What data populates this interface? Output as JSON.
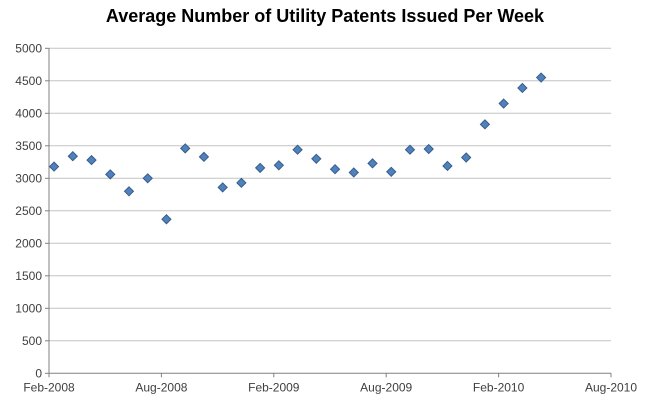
{
  "chart_data": {
    "type": "scatter",
    "title": "Average Number of Utility Patents Issued Per Week",
    "marker": "diamond",
    "legend": "none",
    "grid": true,
    "categories": [
      "Feb-2008",
      "Mar-2008",
      "Apr-2008",
      "May-2008",
      "Jun-2008",
      "Jul-2008",
      "Aug-2008",
      "Sep-2008",
      "Oct-2008",
      "Nov-2008",
      "Dec-2008",
      "Jan-2009",
      "Feb-2009",
      "Mar-2009",
      "Apr-2009",
      "May-2009",
      "Jun-2009",
      "Jul-2009",
      "Aug-2009",
      "Sep-2009",
      "Oct-2009",
      "Nov-2009",
      "Dec-2009",
      "Jan-2010",
      "Feb-2010",
      "Mar-2010",
      "Apr-2010"
    ],
    "values": [
      3180,
      3340,
      3280,
      3060,
      2800,
      3000,
      2370,
      3460,
      3330,
      2860,
      2930,
      3160,
      3200,
      3440,
      3300,
      3140,
      3090,
      3230,
      3100,
      3440,
      3450,
      3190,
      3320,
      3830,
      4150,
      4390,
      4550
    ],
    "x_axis": {
      "tick_labels": [
        "Feb-2008",
        "Aug-2008",
        "Feb-2009",
        "Aug-2009",
        "Feb-2010",
        "Aug-2010"
      ],
      "start": "Feb-2008",
      "end": "Aug-2010",
      "months_total": 30,
      "months_per_tick": 6
    },
    "y_axis": {
      "min": 0,
      "max": 5000,
      "step": 500,
      "tick_labels": [
        "0",
        "500",
        "1000",
        "1500",
        "2000",
        "2500",
        "3000",
        "3500",
        "4000",
        "4500",
        "5000"
      ]
    },
    "colors": {
      "background": "#FFFFFF",
      "title": "#000000",
      "marker_fill": "#4F81BD",
      "marker_border": "#385D8A",
      "gridline": "#C3C3C3",
      "axis_line": "#808080",
      "tick_label": "#3F3F3F"
    }
  }
}
